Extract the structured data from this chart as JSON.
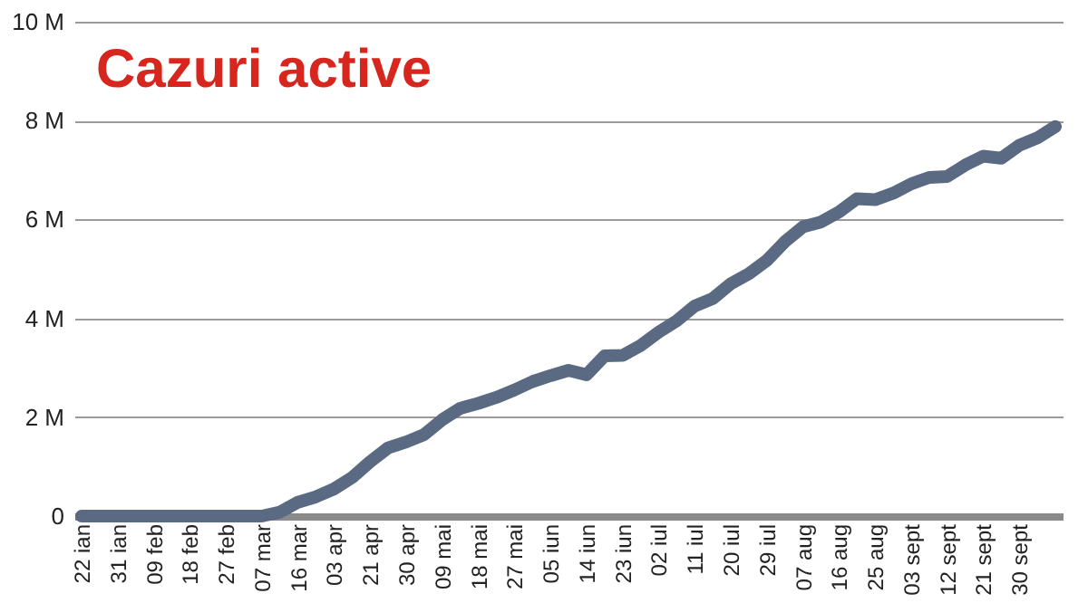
{
  "chart_data": {
    "type": "line",
    "title": "Cazuri active",
    "categories": [
      "22 ian",
      null,
      "31 ian",
      null,
      "09 feb",
      null,
      "18 feb",
      null,
      "27 feb",
      null,
      "07 mar",
      null,
      "16 mar",
      null,
      "03 apr",
      null,
      "21 apr",
      null,
      "30 apr",
      null,
      "09 mai",
      null,
      "18 mai",
      null,
      "27 mai",
      null,
      "05 iun",
      null,
      "14 iun",
      null,
      "23 iun",
      null,
      "02 iul",
      null,
      "11 iul",
      null,
      "20 iul",
      null,
      "29 iul",
      null,
      "07 aug",
      null,
      "16 aug",
      null,
      "25 aug",
      null,
      "03 sept",
      null,
      "12 sept",
      null,
      "21 sept",
      null,
      "30 sept",
      null,
      null
    ],
    "series": [
      {
        "color": "#5a6a82",
        "values": [
          0,
          0,
          0,
          0,
          0,
          0,
          0,
          0,
          0,
          0,
          0,
          0.08,
          0.28,
          0.39,
          0.55,
          0.78,
          1.1,
          1.38,
          1.5,
          1.65,
          1.95,
          2.18,
          2.28,
          2.4,
          2.55,
          2.72,
          2.84,
          2.95,
          2.86,
          3.24,
          3.25,
          3.45,
          3.72,
          3.95,
          4.25,
          4.4,
          4.7,
          4.9,
          5.17,
          5.55,
          5.85,
          5.95,
          6.15,
          6.42,
          6.4,
          6.53,
          6.72,
          6.85,
          6.87,
          7.1,
          7.28,
          7.24,
          7.5,
          7.65,
          7.88
        ]
      }
    ],
    "ylim": [
      0,
      10
    ],
    "yticks": [
      0,
      {
        "value": 2,
        "label": "2 M"
      },
      {
        "value": 4,
        "label": "4 M"
      },
      {
        "value": 6,
        "label": "6 M"
      },
      {
        "value": 8,
        "label": "8 M"
      },
      {
        "value": 10,
        "label": "10 M"
      }
    ],
    "grid": "y",
    "line_style": "solid"
  }
}
